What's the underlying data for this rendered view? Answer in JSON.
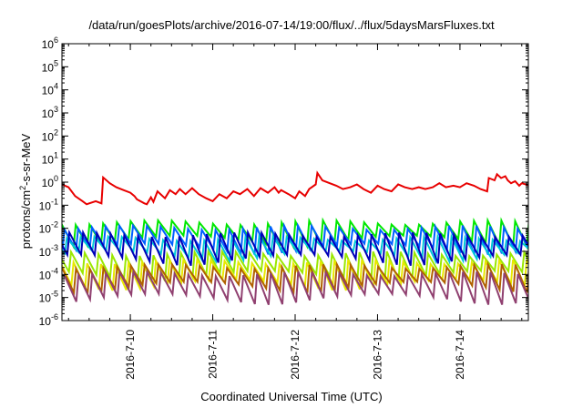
{
  "chart_data": {
    "type": "line",
    "title": "/data/run/goesPlots/archive/2016-07-14/19:00/flux/../flux/5daysMarsFluxes.txt",
    "xlabel": "Coordinated Universal Time (UTC)",
    "ylabel": {
      "pre": "protons/cm",
      "sup": "2",
      "post": "-s-sr-MeV"
    },
    "yscale": "log",
    "ylim": [
      1e-06,
      1000000.0
    ],
    "yticks": [
      "10^-6",
      "10^-5",
      "10^-4",
      "10^-3",
      "10^-2",
      "10^-1",
      "10^0",
      "10^1",
      "10^2",
      "10^3",
      "10^4",
      "10^5",
      "10^6"
    ],
    "xlim_days": [
      "2016-07-09 04:00",
      "2016-07-14 20:00"
    ],
    "xticks": [
      "2016-7-10",
      "2016-7-11",
      "2016-7-12",
      "2016-7-13",
      "2016-7-14"
    ],
    "grid": false,
    "legend": "none",
    "series": [
      {
        "color": "#e80000",
        "points": [
          [
            9.17,
            0.8
          ],
          [
            9.25,
            0.6
          ],
          [
            9.33,
            0.25
          ],
          [
            9.42,
            0.15
          ],
          [
            9.47,
            0.11
          ],
          [
            9.5,
            0.12
          ],
          [
            9.58,
            0.15
          ],
          [
            9.65,
            0.12
          ],
          [
            9.67,
            1.6
          ],
          [
            9.75,
            0.9
          ],
          [
            9.83,
            0.6
          ],
          [
            9.92,
            0.45
          ],
          [
            10.0,
            0.35
          ],
          [
            10.05,
            0.25
          ],
          [
            10.08,
            0.18
          ],
          [
            10.17,
            0.12
          ],
          [
            10.2,
            0.11
          ],
          [
            10.25,
            0.22
          ],
          [
            10.28,
            0.14
          ],
          [
            10.33,
            0.4
          ],
          [
            10.42,
            0.2
          ],
          [
            10.48,
            0.45
          ],
          [
            10.55,
            0.3
          ],
          [
            10.6,
            0.5
          ],
          [
            10.67,
            0.3
          ],
          [
            10.75,
            0.55
          ],
          [
            10.83,
            0.3
          ],
          [
            10.92,
            0.2
          ],
          [
            11.0,
            0.15
          ],
          [
            11.08,
            0.3
          ],
          [
            11.17,
            0.2
          ],
          [
            11.25,
            0.4
          ],
          [
            11.33,
            0.3
          ],
          [
            11.42,
            0.5
          ],
          [
            11.5,
            0.25
          ],
          [
            11.58,
            0.55
          ],
          [
            11.67,
            0.35
          ],
          [
            11.75,
            0.6
          ],
          [
            11.8,
            0.35
          ],
          [
            11.83,
            0.45
          ],
          [
            11.92,
            0.3
          ],
          [
            12.0,
            0.2
          ],
          [
            12.05,
            0.4
          ],
          [
            12.12,
            0.25
          ],
          [
            12.17,
            0.5
          ],
          [
            12.25,
            0.8
          ],
          [
            12.27,
            2.5
          ],
          [
            12.33,
            1.2
          ],
          [
            12.42,
            0.9
          ],
          [
            12.5,
            0.7
          ],
          [
            12.58,
            0.5
          ],
          [
            12.67,
            0.6
          ],
          [
            12.75,
            0.8
          ],
          [
            12.83,
            0.5
          ],
          [
            12.92,
            0.35
          ],
          [
            13.0,
            0.7
          ],
          [
            13.08,
            0.5
          ],
          [
            13.17,
            0.4
          ],
          [
            13.25,
            0.8
          ],
          [
            13.33,
            0.6
          ],
          [
            13.42,
            0.5
          ],
          [
            13.5,
            0.6
          ],
          [
            13.58,
            0.5
          ],
          [
            13.67,
            0.6
          ],
          [
            13.75,
            0.9
          ],
          [
            13.83,
            0.6
          ],
          [
            13.92,
            0.7
          ],
          [
            14.0,
            0.6
          ],
          [
            14.08,
            0.9
          ],
          [
            14.17,
            0.7
          ],
          [
            14.25,
            0.5
          ],
          [
            14.33,
            0.4
          ],
          [
            14.35,
            1.5
          ],
          [
            14.42,
            1.2
          ],
          [
            14.45,
            2.2
          ],
          [
            14.5,
            1.5
          ],
          [
            14.55,
            1.8
          ],
          [
            14.58,
            1.2
          ],
          [
            14.62,
            0.9
          ],
          [
            14.67,
            1.1
          ],
          [
            14.72,
            0.7
          ],
          [
            14.75,
            0.9
          ],
          [
            14.8,
            0.8
          ],
          [
            14.83,
            0.7
          ]
        ]
      },
      {
        "color": "#00e800",
        "base": 0.02,
        "dip": 0.004,
        "phase": 0.0
      },
      {
        "color": "#0060ff",
        "base": 0.012,
        "dip": 0.0018,
        "phase": 0.03
      },
      {
        "color": "#00c8d8",
        "base": 0.004,
        "dip": 0.0009,
        "phase": 0.06
      },
      {
        "color": "#0000b8",
        "base": 0.006,
        "dip": 0.0006,
        "phase": 0.09
      },
      {
        "color": "#9ae800",
        "base": 0.0009,
        "dip": 0.00012,
        "phase": 0.11
      },
      {
        "color": "#e8e800",
        "base": 0.0004,
        "dip": 5e-05,
        "phase": 0.14
      },
      {
        "color": "#b06000",
        "base": 0.00025,
        "dip": 4e-05,
        "phase": 0.17
      },
      {
        "color": "#904070",
        "base": 0.00012,
        "dip": 1.2e-05,
        "phase": 0.2
      }
    ]
  }
}
